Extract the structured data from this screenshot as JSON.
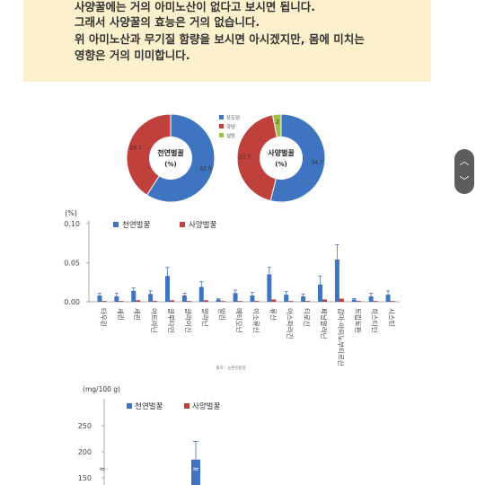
{
  "note": {
    "lines": [
      "사양꿀에는 거의 아미노산이 없다고 보시면 됩니다.",
      "그래서 사양꿀의 효능은 거의 없습니다.",
      "위 아미노산과 무기질 함량을 보시면 아시겠지만, 몸에 미치는",
      "영향은 거의 미미합니다."
    ]
  },
  "scroll_control": {
    "up_icon": "chevron-up-icon",
    "down_icon": "chevron-down-icon"
  },
  "colors": {
    "natural": "#3f74c0",
    "syrup": "#c0403c",
    "sucrose": "#9bc04a",
    "note_bg": "#fdf1cd"
  },
  "chart_data": [
    {
      "type": "pie",
      "subtype": "donut",
      "center_label": "천연벌꿀",
      "center_unit": "(%)",
      "slices": [
        {
          "name": "포도당",
          "value": 42.9
        },
        {
          "name": "과당",
          "value": 29.7
        },
        {
          "name": "설탕",
          "value": 0
        }
      ]
    },
    {
      "type": "pie",
      "subtype": "donut",
      "center_label": "사양벌꿀",
      "center_unit": "(%)",
      "slices": [
        {
          "name": "포도당",
          "value": 34.7
        },
        {
          "name": "과당",
          "value": 27.7
        },
        {
          "name": "설탕",
          "value": 2
        }
      ],
      "legend": [
        "포도당",
        "과당",
        "설탕"
      ],
      "legend_placement": "top-right"
    },
    {
      "type": "bar",
      "ylabel": "(%)",
      "ylim": [
        0,
        0.1
      ],
      "yticks": [
        "0.00",
        "0.05",
        "0.10"
      ],
      "legend_placement": "top",
      "categories": [
        "타우린",
        "세린",
        "세린",
        "아트라닌",
        "글루타민",
        "글라이신",
        "알라닌",
        "발린",
        "메티오닌",
        "이소류신",
        "류신",
        "아스파라긴",
        "티로신",
        "페닐알라닌",
        "감마-아미노부티르산",
        "트립토판",
        "히스티딘",
        "시스틴"
      ],
      "series": [
        {
          "name": "천연벌꿀",
          "values": [
            0.008,
            0.007,
            0.014,
            0.01,
            0.033,
            0.008,
            0.019,
            0.003,
            0.011,
            0.008,
            0.035,
            0.009,
            0.007,
            0.022,
            0.054,
            0.003,
            0.007,
            0.009
          ],
          "errors": [
            0.003,
            0.004,
            0.004,
            0.004,
            0.011,
            0.003,
            0.007,
            0.001,
            0.004,
            0.004,
            0.009,
            0.004,
            0.003,
            0.011,
            0.019,
            0.001,
            0.004,
            0.005
          ]
        },
        {
          "name": "사양벌꿀",
          "values": [
            0.001,
            0.001,
            0.002,
            0.001,
            0.002,
            0.001,
            0.002,
            0.001,
            0.001,
            0.001,
            0.003,
            0.001,
            0.001,
            0.003,
            0.004,
            0.001,
            0.001,
            0.001
          ]
        }
      ],
      "source": "출처 : 농촌진흥청"
    },
    {
      "type": "bar",
      "ylabel": "(mg/100 g)",
      "ylim": [
        0,
        250
      ],
      "yticks": [
        "250",
        "200",
        "150"
      ],
      "legend_placement": "top",
      "series": [
        {
          "name": "천연벌꿀",
          "values": [
            185
          ],
          "errors": [
            35
          ]
        },
        {
          "name": "사양벌꿀",
          "values": []
        }
      ]
    }
  ]
}
